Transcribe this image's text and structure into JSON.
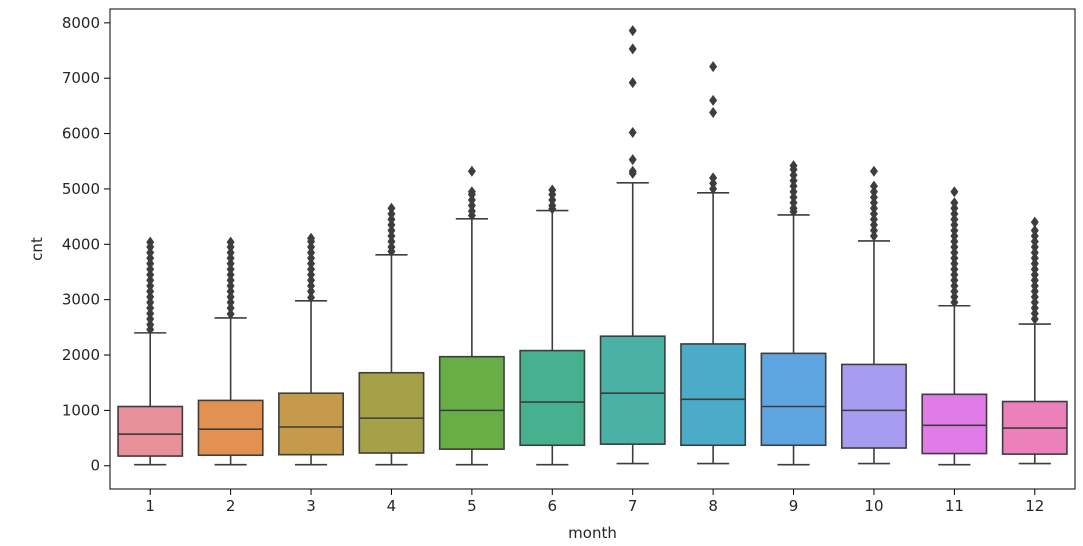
{
  "chart_data": {
    "type": "boxplot",
    "xlabel": "month",
    "ylabel": "cnt",
    "categories": [
      "1",
      "2",
      "3",
      "4",
      "5",
      "6",
      "7",
      "8",
      "9",
      "10",
      "11",
      "12"
    ],
    "ylim": [
      -420,
      8250
    ],
    "yticks": [
      0,
      1000,
      2000,
      3000,
      4000,
      5000,
      6000,
      7000,
      8000
    ],
    "grid": false,
    "legend": "none",
    "colors": [
      "#e8919b",
      "#e39150",
      "#c59a4a",
      "#a4a148",
      "#68ad45",
      "#46b08f",
      "#49b1a5",
      "#4aacc8",
      "#5ea4e0",
      "#a79cef",
      "#e07be8",
      "#ec80ba"
    ],
    "stroke_color": "#3d3d3d",
    "boxes": [
      {
        "q1": 175,
        "median": 570,
        "q3": 1070,
        "whisker_low": 20,
        "whisker_high": 2400,
        "outliers": [
          2460,
          2550,
          2650,
          2750,
          2850,
          2950,
          3050,
          3150,
          3250,
          3350,
          3450,
          3550,
          3650,
          3750,
          3850,
          3950,
          4040
        ]
      },
      {
        "q1": 190,
        "median": 660,
        "q3": 1180,
        "whisker_low": 20,
        "whisker_high": 2670,
        "outliers": [
          2740,
          2850,
          2950,
          3050,
          3150,
          3250,
          3350,
          3450,
          3550,
          3650,
          3750,
          3850,
          3950,
          4040
        ]
      },
      {
        "q1": 200,
        "median": 700,
        "q3": 1310,
        "whisker_low": 20,
        "whisker_high": 2980,
        "outliers": [
          3040,
          3150,
          3250,
          3350,
          3450,
          3550,
          3650,
          3750,
          3850,
          3950,
          4050,
          4110
        ]
      },
      {
        "q1": 230,
        "median": 860,
        "q3": 1680,
        "whisker_low": 20,
        "whisker_high": 3810,
        "outliers": [
          3870,
          3950,
          4050,
          4150,
          4250,
          4350,
          4450,
          4550,
          4650
        ]
      },
      {
        "q1": 300,
        "median": 1000,
        "q3": 1970,
        "whisker_low": 20,
        "whisker_high": 4460,
        "outliers": [
          4520,
          4600,
          4700,
          4800,
          4900,
          4950,
          5320
        ]
      },
      {
        "q1": 370,
        "median": 1150,
        "q3": 2080,
        "whisker_low": 20,
        "whisker_high": 4610,
        "outliers": [
          4640,
          4700,
          4800,
          4900,
          4980
        ]
      },
      {
        "q1": 390,
        "median": 1310,
        "q3": 2340,
        "whisker_low": 40,
        "whisker_high": 5110,
        "outliers": [
          5280,
          5320,
          5530,
          6020,
          6920,
          7530,
          7860
        ]
      },
      {
        "q1": 370,
        "median": 1200,
        "q3": 2200,
        "whisker_low": 40,
        "whisker_high": 4930,
        "outliers": [
          5000,
          5100,
          5200,
          6380,
          6600,
          7210
        ]
      },
      {
        "q1": 370,
        "median": 1070,
        "q3": 2030,
        "whisker_low": 20,
        "whisker_high": 4530,
        "outliers": [
          4590,
          4650,
          4750,
          4850,
          4950,
          5050,
          5150,
          5250,
          5350,
          5420
        ]
      },
      {
        "q1": 320,
        "median": 1000,
        "q3": 1830,
        "whisker_low": 40,
        "whisker_high": 4060,
        "outliers": [
          4150,
          4250,
          4350,
          4450,
          4550,
          4650,
          4750,
          4850,
          4950,
          5050,
          5320
        ]
      },
      {
        "q1": 220,
        "median": 730,
        "q3": 1290,
        "whisker_low": 20,
        "whisker_high": 2890,
        "outliers": [
          2950,
          3050,
          3150,
          3250,
          3350,
          3450,
          3550,
          3650,
          3750,
          3850,
          3950,
          4050,
          4150,
          4250,
          4350,
          4450,
          4550,
          4650,
          4750,
          4950
        ]
      },
      {
        "q1": 210,
        "median": 680,
        "q3": 1160,
        "whisker_low": 40,
        "whisker_high": 2560,
        "outliers": [
          2650,
          2750,
          2850,
          2950,
          3050,
          3150,
          3250,
          3350,
          3450,
          3550,
          3650,
          3750,
          3850,
          3950,
          4050,
          4150,
          4250,
          4400
        ]
      }
    ]
  }
}
